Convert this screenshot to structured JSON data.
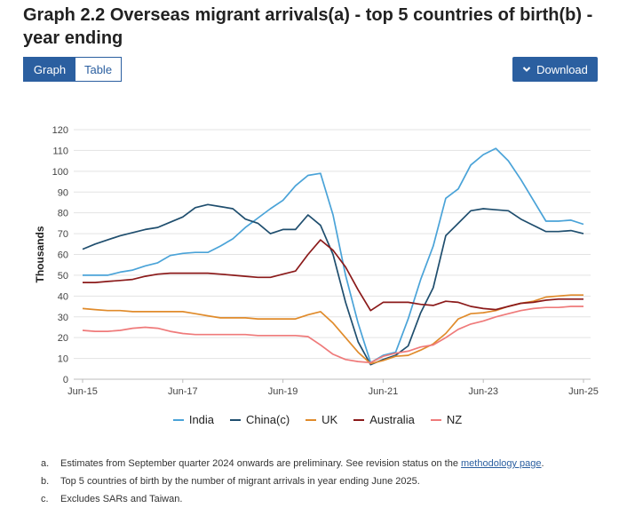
{
  "title": "Graph 2.2 Overseas migrant arrivals(a) - top 5 countries of birth(b) - year ending",
  "toggle": {
    "graph_label": "Graph",
    "table_label": "Table"
  },
  "download_label": "Download",
  "colors": {
    "accent": "#2b5fa0"
  },
  "chart_data": {
    "type": "line",
    "title": "",
    "xlabel": "",
    "ylabel": "Thousands",
    "ylim": [
      0,
      120
    ],
    "yticks": [
      0,
      10,
      20,
      30,
      40,
      50,
      60,
      70,
      80,
      90,
      100,
      110,
      120
    ],
    "x_count": 41,
    "xtick_labels": [
      {
        "index": 0,
        "label": "Jun-15"
      },
      {
        "index": 8,
        "label": "Jun-17"
      },
      {
        "index": 16,
        "label": "Jun-19"
      },
      {
        "index": 24,
        "label": "Jun-21"
      },
      {
        "index": 32,
        "label": "Jun-23"
      },
      {
        "index": 40,
        "label": "Jun-25"
      }
    ],
    "series": [
      {
        "name": "India",
        "color": "#4aa3d8",
        "values": [
          50,
          50,
          50,
          51.5,
          52.5,
          54.5,
          56,
          59.5,
          60.5,
          61,
          61,
          64,
          67.5,
          73,
          77.5,
          82,
          86,
          93,
          98,
          99,
          79,
          50,
          27,
          8,
          11.5,
          13,
          29,
          48,
          64,
          87,
          91.5,
          103,
          108,
          111,
          105,
          96,
          86,
          76,
          76,
          76.5,
          74.5
        ]
      },
      {
        "name": "China(c)",
        "color": "#1f4e6e",
        "values": [
          62.5,
          65,
          67,
          69,
          70.5,
          72,
          73,
          75.5,
          78,
          82.5,
          84,
          83,
          82,
          77,
          75,
          70,
          72,
          72,
          79,
          74,
          60,
          37,
          18,
          7,
          9.5,
          11.5,
          16,
          32,
          44,
          69,
          75,
          81,
          82,
          81.5,
          81,
          77,
          74,
          71,
          71,
          71.5,
          70
        ]
      },
      {
        "name": "UK",
        "color": "#e08b2b",
        "values": [
          34,
          33.5,
          33,
          33,
          32.5,
          32.5,
          32.5,
          32.5,
          32.5,
          31.5,
          30.5,
          29.5,
          29.5,
          29.5,
          29,
          29,
          29,
          29,
          31,
          32.5,
          27,
          20,
          13,
          7.5,
          9,
          11,
          11.5,
          14,
          17,
          22,
          29,
          31.5,
          32,
          33,
          35,
          36.5,
          37.5,
          39.5,
          40,
          40.5,
          40.5
        ]
      },
      {
        "name": "Australia",
        "color": "#8b1a1a",
        "values": [
          46.5,
          46.5,
          47,
          47.5,
          48,
          49.5,
          50.5,
          51,
          51,
          51,
          51,
          50.5,
          50,
          49.5,
          49,
          49,
          50.5,
          52,
          60,
          67,
          62,
          54,
          43,
          33,
          37,
          37,
          37,
          36,
          35.5,
          37.5,
          37,
          35,
          34,
          33.5,
          35,
          36.5,
          37,
          38,
          38.5,
          38.5,
          38.5
        ]
      },
      {
        "name": "NZ",
        "color": "#ef7a7a",
        "values": [
          23.5,
          23,
          23,
          23.5,
          24.5,
          25,
          24.5,
          23,
          22,
          21.5,
          21.5,
          21.5,
          21.5,
          21.5,
          21,
          21,
          21,
          21,
          20.5,
          16.5,
          12,
          9.5,
          8.5,
          8,
          11,
          12.5,
          13.5,
          15.5,
          16.5,
          20,
          24,
          26.5,
          28,
          30,
          31.5,
          33,
          34,
          34.5,
          34.5,
          35,
          35
        ]
      }
    ]
  },
  "notes": [
    {
      "letter": "a.",
      "text": "Estimates from September quarter 2024 onwards are preliminary. See revision status on the ",
      "link": "methodology page",
      "after": "."
    },
    {
      "letter": "b.",
      "text": "Top 5 countries of birth by the number of migrant arrivals in year ending June 2025.",
      "link": "",
      "after": ""
    },
    {
      "letter": "c.",
      "text": "Excludes SARs and Taiwan.",
      "link": "",
      "after": ""
    }
  ]
}
